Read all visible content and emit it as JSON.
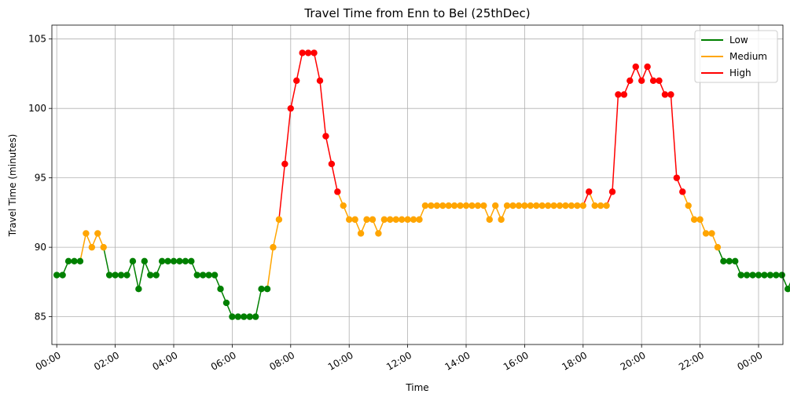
{
  "chart_data": {
    "type": "line",
    "title": "Travel Time from Enn to Bel (25thDec)",
    "xlabel": "Time",
    "ylabel": "Travel Time (minutes)",
    "x_tick_labels": [
      "00:00",
      "02:00",
      "04:00",
      "06:00",
      "08:00",
      "10:00",
      "12:00",
      "14:00",
      "16:00",
      "18:00",
      "20:00",
      "22:00",
      "00:00"
    ],
    "y_ticks": [
      85,
      90,
      95,
      100,
      105
    ],
    "xlim": [
      "23:50",
      "00:50 (next day)"
    ],
    "ylim": [
      83,
      106
    ],
    "grid": true,
    "legend_position": "top-right",
    "interval_minutes": 12,
    "start_time": "00:00",
    "thresholds": {
      "medium_min": 90,
      "high_min": 94
    },
    "colors": {
      "Low": "#008000",
      "Medium": "#ffa500",
      "High": "#ff0000",
      "axis": "#000000",
      "grid": "#b0b0b0"
    },
    "series": [
      {
        "name": "Low",
        "color": "#008000"
      },
      {
        "name": "Medium",
        "color": "#ffa500"
      },
      {
        "name": "High",
        "color": "#ff0000"
      }
    ],
    "values": [
      88,
      88,
      89,
      89,
      89,
      91,
      90,
      91,
      90,
      88,
      88,
      88,
      88,
      89,
      87,
      89,
      88,
      88,
      89,
      89,
      89,
      89,
      89,
      89,
      88,
      88,
      88,
      88,
      87,
      86,
      85,
      85,
      85,
      85,
      85,
      87,
      87,
      90,
      92,
      96,
      100,
      102,
      104,
      104,
      104,
      102,
      98,
      96,
      94,
      93,
      92,
      92,
      91,
      92,
      92,
      91,
      92,
      92,
      92,
      92,
      92,
      92,
      92,
      93,
      93,
      93,
      93,
      93,
      93,
      93,
      93,
      93,
      93,
      93,
      92,
      93,
      92,
      93,
      93,
      93,
      93,
      93,
      93,
      93,
      93,
      93,
      93,
      93,
      93,
      93,
      93,
      94,
      93,
      93,
      93,
      94,
      101,
      101,
      102,
      103,
      102,
      103,
      102,
      102,
      101,
      101,
      95,
      94,
      93,
      92,
      92,
      91,
      91,
      90,
      89,
      89,
      89,
      88,
      88,
      88,
      88,
      88,
      88,
      88,
      88,
      87,
      88,
      88,
      88,
      88,
      88,
      88,
      88,
      88,
      89,
      89,
      88,
      88,
      88,
      88,
      88,
      89,
      88,
      88,
      89,
      89,
      88,
      88,
      89,
      89,
      89,
      87,
      88,
      87,
      86,
      87,
      89
    ]
  }
}
